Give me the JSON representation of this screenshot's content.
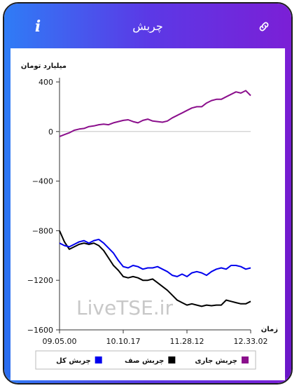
{
  "header": {
    "title": "چربش",
    "info_icon": "info-icon",
    "link_icon": "link-icon"
  },
  "chart_data": {
    "type": "line",
    "ylabel": "میلیارد تومان",
    "xlabel": "زمان",
    "ylim": [
      -1600,
      400
    ],
    "yticks": [
      400,
      0,
      -400,
      -800,
      -1200,
      -1600
    ],
    "ytick_labels": [
      "400",
      "0",
      "−400",
      "−800",
      "−1200",
      "−1600"
    ],
    "xticks": [
      "09.05.00",
      "10.10.17",
      "11.28.12",
      "12.33.02"
    ],
    "zero_line": true,
    "legend_position": "bottom",
    "watermark": "LiveTSE.ir",
    "series": [
      {
        "name": "چربش جاری",
        "color": "#8b0f8c",
        "values": [
          -40,
          -25,
          -10,
          10,
          20,
          25,
          40,
          45,
          55,
          60,
          55,
          70,
          80,
          90,
          95,
          80,
          70,
          90,
          100,
          85,
          80,
          75,
          85,
          110,
          130,
          150,
          170,
          190,
          200,
          200,
          230,
          250,
          260,
          260,
          280,
          300,
          320,
          310,
          330,
          290
        ]
      },
      {
        "name": "چربش صف",
        "color": "#000000",
        "values": [
          -800,
          -890,
          -950,
          -930,
          -910,
          -900,
          -910,
          -900,
          -920,
          -960,
          -1020,
          -1080,
          -1120,
          -1170,
          -1180,
          -1170,
          -1180,
          -1200,
          -1200,
          -1190,
          -1220,
          -1250,
          -1280,
          -1320,
          -1360,
          -1380,
          -1400,
          -1390,
          -1400,
          -1410,
          -1400,
          -1405,
          -1400,
          -1400,
          -1360,
          -1370,
          -1380,
          -1390,
          -1390,
          -1370
        ]
      },
      {
        "name": "چربش کل",
        "color": "#0000ee",
        "values": [
          -900,
          -920,
          -930,
          -910,
          -890,
          -880,
          -900,
          -880,
          -870,
          -900,
          -940,
          -980,
          -1040,
          -1090,
          -1100,
          -1080,
          -1090,
          -1110,
          -1100,
          -1100,
          -1090,
          -1110,
          -1130,
          -1160,
          -1170,
          -1150,
          -1170,
          -1140,
          -1130,
          -1140,
          -1160,
          -1130,
          -1110,
          -1100,
          -1110,
          -1080,
          -1080,
          -1090,
          -1110,
          -1100
        ]
      }
    ]
  }
}
